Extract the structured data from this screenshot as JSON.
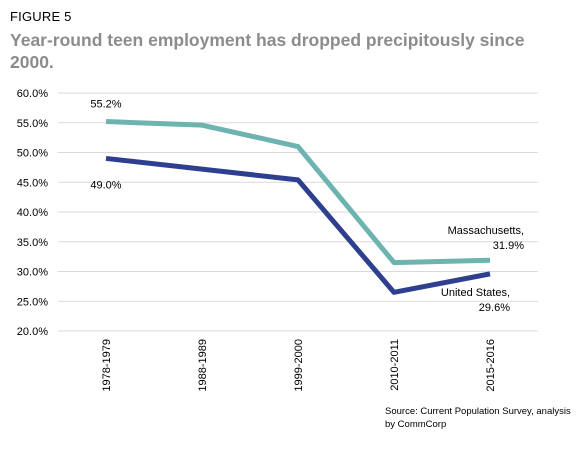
{
  "figure_label": "FIGURE 5",
  "source_text": "Source: Current Population Survey, analysis by CommCorp",
  "chart_data": {
    "type": "line",
    "title": "Year-round teen employment has dropped precipitously since 2000.",
    "xlabel": "",
    "ylabel": "",
    "categories": [
      "1978-1979",
      "1988-1989",
      "1999-2000",
      "2010-2011",
      "2015-2016"
    ],
    "ylim": [
      20.0,
      60.0
    ],
    "yticks": [
      "20.0%",
      "25.0%",
      "30.0%",
      "35.0%",
      "40.0%",
      "45.0%",
      "50.0%",
      "55.0%",
      "60.0%"
    ],
    "grid": true,
    "legend": "none",
    "series": [
      {
        "name": "Massachusetts",
        "color": "#6db3b0",
        "values": [
          55.2,
          54.6,
          51.0,
          31.5,
          31.9
        ],
        "labels": [
          {
            "index": 0,
            "lines": [
              "55.2%"
            ]
          },
          {
            "index": 4,
            "lines": [
              "Massachusetts,",
              "31.9%"
            ]
          }
        ]
      },
      {
        "name": "United States",
        "color": "#2e3f8f",
        "values": [
          49.0,
          47.2,
          45.4,
          26.5,
          29.6
        ],
        "labels": [
          {
            "index": 0,
            "lines": [
              "49.0%"
            ]
          },
          {
            "index": 4,
            "lines": [
              "United States,",
              "29.6%"
            ]
          }
        ]
      }
    ]
  }
}
